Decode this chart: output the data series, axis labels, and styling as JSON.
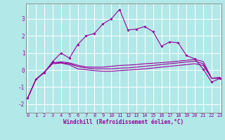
{
  "xlabel": "Windchill (Refroidissement éolien,°C)",
  "background_color": "#b2e8e8",
  "grid_color": "#ffffff",
  "line_color": "#990099",
  "x": [
    0,
    1,
    2,
    3,
    4,
    5,
    6,
    7,
    8,
    9,
    10,
    11,
    12,
    13,
    14,
    15,
    16,
    17,
    18,
    19,
    20,
    21,
    22,
    23
  ],
  "ylim": [
    -2.5,
    3.9
  ],
  "xlim": [
    -0.2,
    23.2
  ],
  "series1": [
    -1.65,
    -0.55,
    -0.15,
    0.5,
    1.0,
    0.7,
    1.5,
    2.0,
    2.15,
    2.7,
    3.0,
    3.55,
    2.35,
    2.4,
    2.55,
    2.25,
    1.4,
    1.65,
    1.6,
    0.85,
    0.65,
    0.05,
    -0.7,
    -0.5
  ],
  "series2": [
    -1.65,
    -0.55,
    -0.12,
    0.42,
    0.48,
    0.42,
    0.28,
    0.18,
    0.17,
    0.17,
    0.22,
    0.27,
    0.29,
    0.32,
    0.37,
    0.4,
    0.43,
    0.47,
    0.52,
    0.57,
    0.62,
    0.5,
    -0.48,
    -0.48
  ],
  "series3": [
    -1.65,
    -0.55,
    -0.12,
    0.42,
    0.43,
    0.37,
    0.21,
    0.12,
    0.08,
    0.07,
    0.07,
    0.11,
    0.13,
    0.17,
    0.22,
    0.27,
    0.32,
    0.37,
    0.42,
    0.47,
    0.52,
    0.37,
    -0.48,
    -0.47
  ],
  "series4": [
    -1.65,
    -0.55,
    -0.13,
    0.37,
    0.41,
    0.31,
    0.07,
    0.02,
    -0.03,
    -0.07,
    -0.07,
    -0.03,
    0.0,
    0.03,
    0.07,
    0.12,
    0.17,
    0.22,
    0.27,
    0.32,
    0.37,
    0.27,
    -0.48,
    -0.43
  ],
  "yticks": [
    -2,
    -1,
    0,
    1,
    2,
    3
  ],
  "xticks": [
    0,
    1,
    2,
    3,
    4,
    5,
    6,
    7,
    8,
    9,
    10,
    11,
    12,
    13,
    14,
    15,
    16,
    17,
    18,
    19,
    20,
    21,
    22,
    23
  ],
  "tick_fontsize": 5.0,
  "xlabel_fontsize": 5.5
}
